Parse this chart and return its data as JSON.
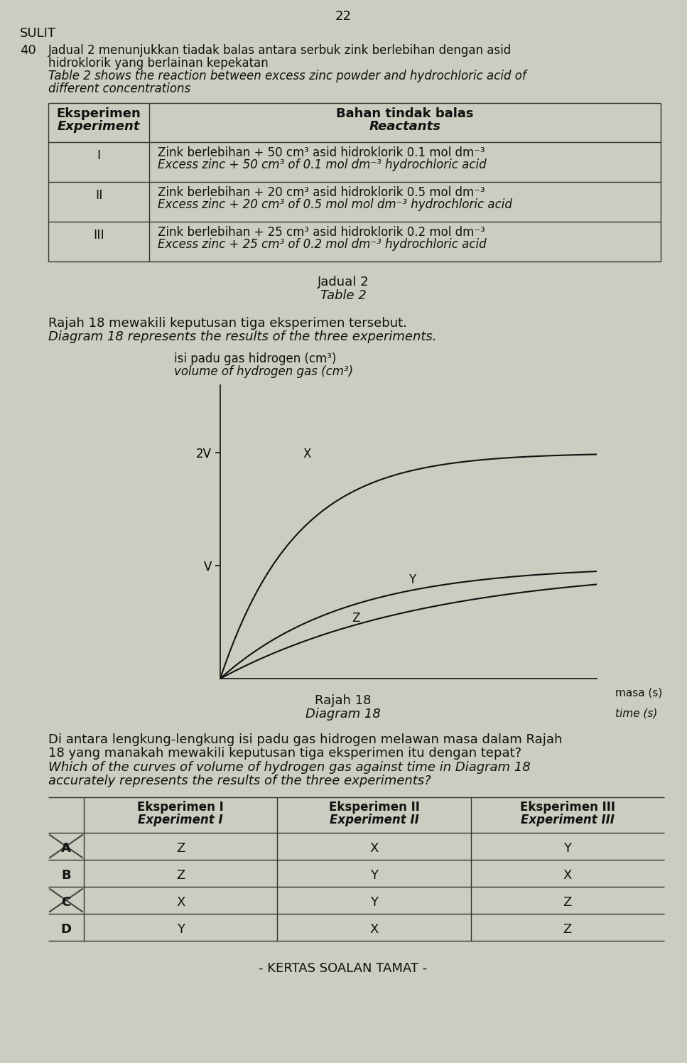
{
  "page_number": "22",
  "header": "SULIT",
  "question_number": "40",
  "bg_color": "#ccccc0",
  "text_color": "#1a1a1a",
  "intro_text_malay_1": "Jadual 2 menunjukkan tiadak balas antara serbuk zink berlebihan dengan asid",
  "intro_text_malay_2": "hidroklorik yang berlainan kepekatan",
  "intro_text_english_1": "Table 2 shows the reaction between excess zinc powder and hydrochloric acid of",
  "intro_text_english_2": "different concentrations",
  "experiments": [
    {
      "roman": "I",
      "malay": "Zink berlebihan + 50 cm³ asid hidroklorik 0.1 mol dm⁻³",
      "english": "Excess zinc + 50 cm³ of 0.1 mol dm⁻³ hydrochloric acid"
    },
    {
      "roman": "II",
      "malay": "Zink berlebihan + 20 cm³ asid hidroklorik 0.5 mol dm⁻³",
      "english": "Excess zinc + 20 cm³ of 0.5 mol mol dm⁻³ hydrochloric acid"
    },
    {
      "roman": "III",
      "malay": "Zink berlebihan + 25 cm³ asid hidroklorik 0.2 mol dm⁻³",
      "english": "Excess zinc + 25 cm³ of 0.2 mol dm⁻³ hydrochloric acid"
    }
  ],
  "table_caption_malay": "Jadual 2",
  "table_caption_english": "Table 2",
  "diagram_intro_malay": "Rajah 18 mewakili keputusan tiga eksperimen tersebut.",
  "diagram_intro_english": "Diagram 18 represents the results of the three experiments.",
  "yaxis_label_malay": "isi padu gas hidrogen (cm³)",
  "yaxis_label_english": "volume of hydrogen gas (cm³)",
  "xaxis_label_malay": "masa (s)",
  "xaxis_label_english": "time (s)",
  "curve_labels": [
    "X",
    "Y",
    "Z"
  ],
  "curve_plateaus": [
    2.0,
    1.0,
    1.0
  ],
  "curve_rates": [
    5.0,
    3.0,
    1.8
  ],
  "diagram_caption_malay": "Rajah 18",
  "diagram_caption_english": "Diagram 18",
  "question_text_malay_1": "Di antara lengkung-lengkung isi padu gas hidrogen melawan masa dalam Rajah",
  "question_text_malay_2": "18 yang manakah mewakili keputusan tiga eksperimen itu dengan tepat?",
  "question_text_english_1": "Which of the curves of volume of hydrogen gas against time in Diagram 18",
  "question_text_english_2": "accurately represents the results of the three experiments?",
  "answer_table_col_headers": [
    "Eksperimen I",
    "Eksperimen II",
    "Eksperimen III"
  ],
  "answer_table_col_headers_en": [
    "Experiment I",
    "Experiment II",
    "Experiment III"
  ],
  "answer_rows": [
    {
      "label": "A",
      "values": [
        "Z",
        "X",
        "Y"
      ],
      "crossed": true
    },
    {
      "label": "B",
      "values": [
        "Z",
        "Y",
        "X"
      ],
      "crossed": false
    },
    {
      "label": "C",
      "values": [
        "X",
        "Y",
        "Z"
      ],
      "crossed": true
    },
    {
      "label": "D",
      "values": [
        "Y",
        "X",
        "Z"
      ],
      "crossed": false
    }
  ],
  "footer": "- KERTAS SOALAN TAMAT -"
}
